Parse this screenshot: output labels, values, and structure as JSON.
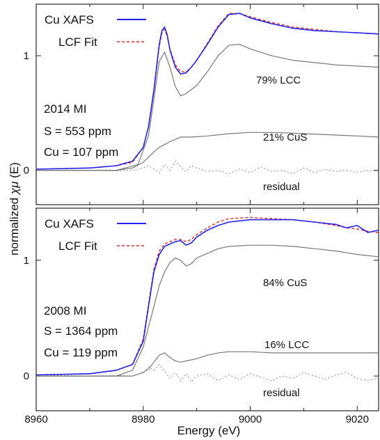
{
  "chart_data": [
    {
      "type": "line",
      "xlim": [
        8960,
        9024
      ],
      "ylim": [
        -0.3,
        1.45
      ],
      "yticks": [
        0,
        1
      ],
      "legend": [
        "Cu XAFS",
        "LCF Fit"
      ],
      "info": [
        "2014 MI",
        "S = 553 ppm",
        "Cu = 107 ppm"
      ],
      "annotations": {
        "comp1": "79% LCC",
        "comp2": "21% CuS",
        "residual": "residual"
      },
      "colors": {
        "data": "#2222ee",
        "fit": "#ee2222",
        "component": "#777777",
        "residual": "#888888"
      },
      "series": [
        {
          "name": "Cu XAFS",
          "x": [
            8960,
            8970,
            8975,
            8978,
            8980,
            8981,
            8982,
            8983,
            8983.5,
            8984,
            8984.5,
            8985,
            8986,
            8987,
            8988,
            8989,
            8990,
            8992,
            8994,
            8996,
            8998,
            9000,
            9004,
            9008,
            9012,
            9016,
            9020,
            9024
          ],
          "y": [
            0.01,
            0.02,
            0.04,
            0.08,
            0.2,
            0.38,
            0.7,
            1.1,
            1.22,
            1.25,
            1.18,
            1.05,
            0.9,
            0.84,
            0.85,
            0.9,
            0.96,
            1.1,
            1.25,
            1.36,
            1.37,
            1.33,
            1.28,
            1.24,
            1.22,
            1.21,
            1.2,
            1.19
          ]
        },
        {
          "name": "LCF Fit",
          "x": [
            8960,
            8970,
            8975,
            8978,
            8980,
            8981,
            8982,
            8983,
            8983.5,
            8984,
            8984.5,
            8985,
            8986,
            8987,
            8988,
            8989,
            8990,
            8992,
            8994,
            8996,
            8998,
            9000,
            9004,
            9008,
            9012,
            9016,
            9020,
            9024
          ],
          "y": [
            0.01,
            0.02,
            0.04,
            0.07,
            0.2,
            0.38,
            0.69,
            1.08,
            1.2,
            1.23,
            1.17,
            1.06,
            0.92,
            0.86,
            0.86,
            0.9,
            0.96,
            1.11,
            1.26,
            1.37,
            1.37,
            1.34,
            1.29,
            1.25,
            1.23,
            1.21,
            1.2,
            1.19
          ]
        },
        {
          "name": "79% LCC",
          "x": [
            8960,
            8975,
            8979,
            8981,
            8982,
            8983,
            8984,
            8985,
            8986,
            8987,
            8988,
            8990,
            8992,
            8994,
            8996,
            8998,
            9000,
            9004,
            9008,
            9012,
            9016,
            9020,
            9024
          ],
          "y": [
            0.0,
            0.0,
            0.05,
            0.3,
            0.62,
            0.95,
            1.03,
            0.9,
            0.73,
            0.65,
            0.67,
            0.74,
            0.86,
            1.0,
            1.09,
            1.1,
            1.06,
            1.0,
            0.96,
            0.94,
            0.92,
            0.91,
            0.9
          ]
        },
        {
          "name": "21% CuS",
          "x": [
            8960,
            8975,
            8978,
            8980,
            8982,
            8983,
            8985,
            8987,
            8989,
            8992,
            8996,
            9000,
            9005,
            9010,
            9015,
            9020,
            9024
          ],
          "y": [
            0.0,
            0.0,
            0.02,
            0.07,
            0.16,
            0.2,
            0.25,
            0.29,
            0.29,
            0.3,
            0.32,
            0.33,
            0.33,
            0.32,
            0.31,
            0.3,
            0.29
          ]
        },
        {
          "name": "residual",
          "x": [
            8960,
            8970,
            8975,
            8978,
            8980,
            8981,
            8982,
            8983,
            8984,
            8985,
            8986,
            8987,
            8988,
            8989,
            8990,
            8992,
            8994,
            8996,
            8998,
            9000,
            9002,
            9004,
            9006,
            9008,
            9010,
            9012,
            9014,
            9016,
            9018,
            9020,
            9022,
            9024
          ],
          "y": [
            0.0,
            0.0,
            -0.005,
            0.0,
            0.02,
            0.04,
            0.01,
            -0.02,
            0.05,
            0.0,
            0.08,
            0.03,
            -0.01,
            0.04,
            0.02,
            -0.01,
            0.0,
            -0.03,
            0.01,
            -0.02,
            0.03,
            -0.01,
            0.0,
            -0.03,
            0.02,
            -0.02,
            0.01,
            -0.01,
            0.0,
            -0.02,
            0.0,
            -0.01
          ]
        }
      ]
    },
    {
      "type": "line",
      "xlim": [
        8960,
        9024
      ],
      "ylim": [
        -0.3,
        1.45
      ],
      "yticks": [
        0,
        1
      ],
      "legend": [
        "Cu XAFS",
        "LCF Fit"
      ],
      "info": [
        "2008 MI",
        "S = 1364 ppm",
        "Cu = 119 ppm"
      ],
      "annotations": {
        "comp1": "84% CuS",
        "comp2": "16% LCC",
        "residual": "residual"
      },
      "colors": {
        "data": "#2222ee",
        "fit": "#ee2222",
        "component": "#777777",
        "residual": "#888888"
      },
      "series": [
        {
          "name": "Cu XAFS",
          "x": [
            8960,
            8970,
            8975,
            8978,
            8980,
            8981,
            8982,
            8983,
            8984,
            8985,
            8986,
            8987,
            8988,
            8989,
            8990,
            8992,
            8994,
            8996,
            9000,
            9004,
            9008,
            9012,
            9016,
            9018,
            9020,
            9022,
            9024
          ],
          "y": [
            0.01,
            0.02,
            0.05,
            0.1,
            0.3,
            0.6,
            0.9,
            1.05,
            1.12,
            1.14,
            1.16,
            1.17,
            1.13,
            1.15,
            1.2,
            1.26,
            1.3,
            1.33,
            1.35,
            1.35,
            1.35,
            1.33,
            1.31,
            1.28,
            1.3,
            1.24,
            1.26
          ]
        },
        {
          "name": "LCF Fit",
          "x": [
            8960,
            8970,
            8975,
            8978,
            8980,
            8981,
            8982,
            8983,
            8984,
            8985,
            8986,
            8987,
            8988,
            8989,
            8990,
            8992,
            8994,
            8996,
            9000,
            9004,
            9008,
            9012,
            9016,
            9018,
            9020,
            9022,
            9024
          ],
          "y": [
            0.01,
            0.02,
            0.05,
            0.1,
            0.32,
            0.62,
            0.92,
            1.08,
            1.14,
            1.16,
            1.18,
            1.18,
            1.16,
            1.18,
            1.22,
            1.28,
            1.33,
            1.36,
            1.37,
            1.36,
            1.35,
            1.33,
            1.3,
            1.28,
            1.27,
            1.25,
            1.24
          ]
        },
        {
          "name": "84% CuS",
          "x": [
            8960,
            8975,
            8978,
            8980,
            8982,
            8983,
            8984,
            8985,
            8986,
            8987,
            8988,
            8989,
            8990,
            8992,
            8994,
            8996,
            9000,
            9004,
            9008,
            9012,
            9016,
            9020,
            9024
          ],
          "y": [
            0.0,
            0.0,
            0.05,
            0.25,
            0.6,
            0.78,
            0.9,
            0.98,
            1.02,
            1.0,
            0.95,
            0.97,
            1.02,
            1.06,
            1.1,
            1.12,
            1.13,
            1.13,
            1.12,
            1.1,
            1.08,
            1.05,
            1.03
          ]
        },
        {
          "name": "16% LCC",
          "x": [
            8960,
            8978,
            8980,
            8981,
            8982,
            8983,
            8984,
            8985,
            8986,
            8987,
            8988,
            8990,
            8992,
            8994,
            8996,
            9000,
            9004,
            9008,
            9012,
            9016,
            9020,
            9024
          ],
          "y": [
            0.0,
            0.0,
            0.03,
            0.06,
            0.12,
            0.18,
            0.2,
            0.16,
            0.13,
            0.12,
            0.13,
            0.15,
            0.18,
            0.2,
            0.21,
            0.21,
            0.2,
            0.2,
            0.2,
            0.2,
            0.2,
            0.2
          ]
        },
        {
          "name": "residual",
          "x": [
            8960,
            8970,
            8975,
            8978,
            8980,
            8981,
            8982,
            8983,
            8984,
            8985,
            8986,
            8987,
            8988,
            8989,
            8990,
            8992,
            8994,
            8996,
            8998,
            9000,
            9002,
            9004,
            9006,
            9008,
            9010,
            9012,
            9014,
            9016,
            9018,
            9020,
            9022,
            9024
          ],
          "y": [
            0.01,
            0.0,
            0.005,
            0.0,
            0.03,
            0.08,
            0.05,
            0.1,
            0.04,
            -0.02,
            0.03,
            -0.04,
            0.02,
            -0.05,
            0.0,
            0.02,
            -0.04,
            0.01,
            -0.03,
            0.02,
            -0.01,
            -0.04,
            0.0,
            -0.02,
            0.03,
            0.0,
            -0.03,
            0.01,
            0.03,
            -0.02,
            -0.04,
            -0.02
          ]
        }
      ]
    }
  ],
  "axes": {
    "xlabel": "Energy (eV)",
    "ylabel_pre": "normalized ",
    "ylabel_chi": "χμ",
    "ylabel_post": " (E)",
    "xticks": [
      8960,
      8980,
      9000,
      9020
    ]
  }
}
